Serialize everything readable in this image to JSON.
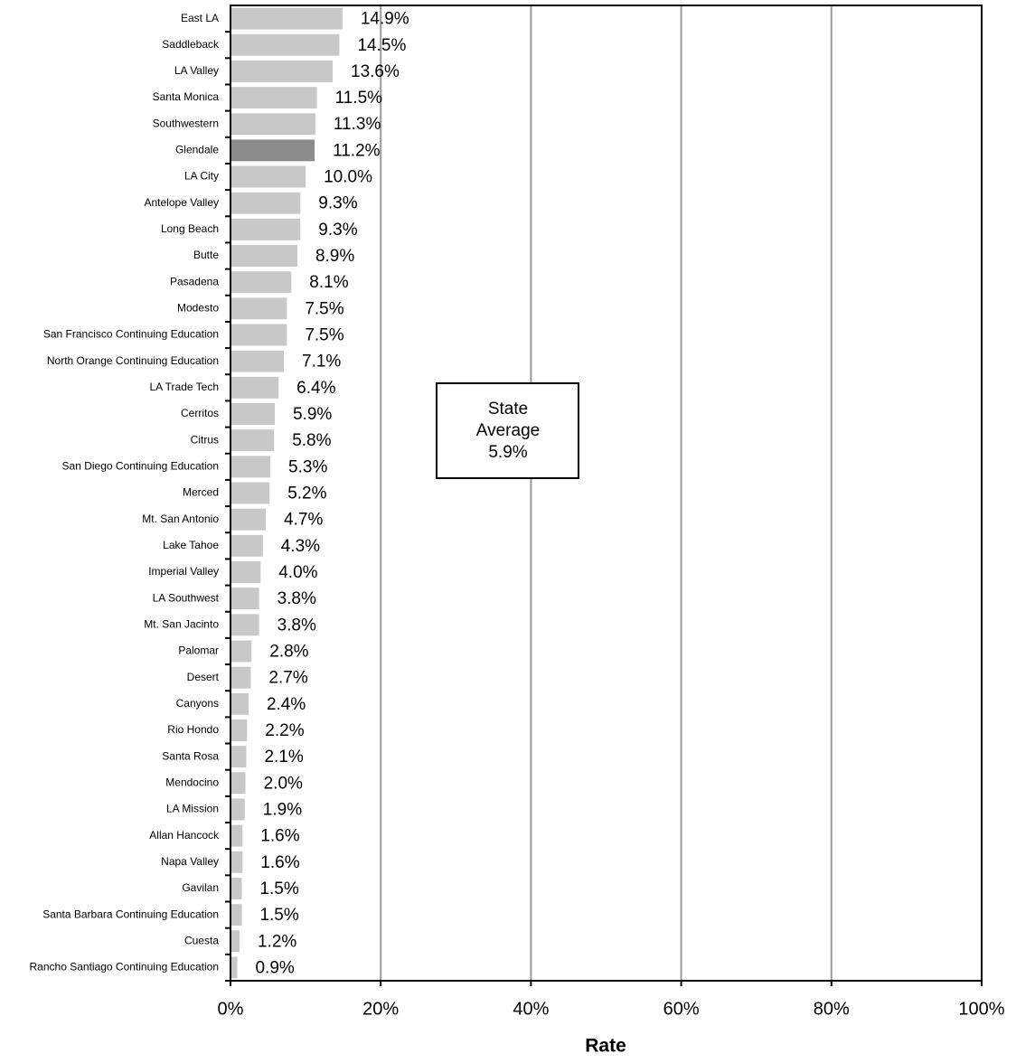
{
  "chart_data": {
    "type": "bar",
    "orientation": "horizontal",
    "categories": [
      "East LA",
      "Saddleback",
      "LA Valley",
      "Santa Monica",
      "Southwestern",
      "Glendale",
      "LA City",
      "Antelope Valley",
      "Long Beach",
      "Butte",
      "Pasadena",
      "Modesto",
      "San Francisco Continuing Education",
      "North Orange Continuing Education",
      "LA Trade Tech",
      "Cerritos",
      "Citrus",
      "San Diego Continuing Education",
      "Merced",
      "Mt. San Antonio",
      "Lake Tahoe",
      "Imperial Valley",
      "LA Southwest",
      "Mt. San Jacinto",
      "Palomar",
      "Desert",
      "Canyons",
      "Rio Hondo",
      "Santa Rosa",
      "Mendocino",
      "LA Mission",
      "Allan Hancock",
      "Napa Valley",
      "Gavilan",
      "Santa Barbara Continuing Education",
      "Cuesta",
      "Rancho Santiago Continuing Education"
    ],
    "values": [
      14.9,
      14.5,
      13.6,
      11.5,
      11.3,
      11.2,
      10.0,
      9.3,
      9.3,
      8.9,
      8.1,
      7.5,
      7.5,
      7.1,
      6.4,
      5.9,
      5.8,
      5.3,
      5.2,
      4.7,
      4.3,
      4.0,
      3.8,
      3.8,
      2.8,
      2.7,
      2.4,
      2.2,
      2.1,
      2.0,
      1.9,
      1.6,
      1.6,
      1.5,
      1.5,
      1.2,
      0.9
    ],
    "value_labels": [
      "14.9%",
      "14.5%",
      "13.6%",
      "11.5%",
      "11.3%",
      "11.2%",
      "10.0%",
      "9.3%",
      "9.3%",
      "8.9%",
      "8.1%",
      "7.5%",
      "7.5%",
      "7.1%",
      "6.4%",
      "5.9%",
      "5.8%",
      "5.3%",
      "5.2%",
      "4.7%",
      "4.3%",
      "4.0%",
      "3.8%",
      "3.8%",
      "2.8%",
      "2.7%",
      "2.4%",
      "2.2%",
      "2.1%",
      "2.0%",
      "1.9%",
      "1.6%",
      "1.6%",
      "1.5%",
      "1.5%",
      "1.2%",
      "0.9%"
    ],
    "colors": [
      "#c8c8c8",
      "#c8c8c8",
      "#c8c8c8",
      "#c8c8c8",
      "#c8c8c8",
      "#8c8c8c",
      "#c8c8c8",
      "#c8c8c8",
      "#c8c8c8",
      "#c8c8c8",
      "#c8c8c8",
      "#c8c8c8",
      "#c8c8c8",
      "#c8c8c8",
      "#c8c8c8",
      "#c8c8c8",
      "#c8c8c8",
      "#c8c8c8",
      "#c8c8c8",
      "#c8c8c8",
      "#c8c8c8",
      "#c8c8c8",
      "#c8c8c8",
      "#c8c8c8",
      "#c8c8c8",
      "#c8c8c8",
      "#c8c8c8",
      "#c8c8c8",
      "#c8c8c8",
      "#c8c8c8",
      "#c8c8c8",
      "#c8c8c8",
      "#c8c8c8",
      "#c8c8c8",
      "#c8c8c8",
      "#c8c8c8",
      "#c8c8c8"
    ],
    "xlabel": "Rate",
    "xlim": [
      0,
      100
    ],
    "xticks": [
      {
        "value": 0,
        "label": "0%"
      },
      {
        "value": 20,
        "label": "20%"
      },
      {
        "value": 40,
        "label": "40%"
      },
      {
        "value": 60,
        "label": "60%"
      },
      {
        "value": 80,
        "label": "80%"
      },
      {
        "value": 100,
        "label": "100%"
      }
    ],
    "grid": true,
    "annotation": [
      "State",
      "Average",
      "5.9%"
    ]
  }
}
